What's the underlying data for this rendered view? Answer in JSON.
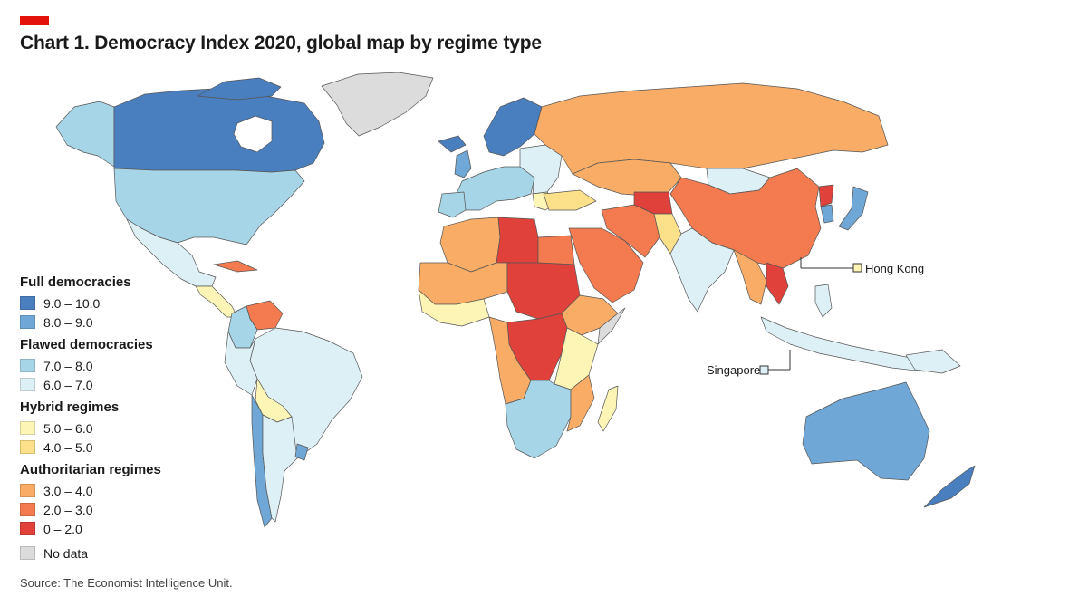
{
  "header": {
    "title": "Chart 1. Democracy Index 2020, global map by regime type",
    "accent_color": "#e3120b"
  },
  "legend": {
    "groups": [
      {
        "title": "Full democracies",
        "items": [
          {
            "label": "9.0 – 10.0",
            "color": "#4a7fbf"
          },
          {
            "label": "8.0 – 9.0",
            "color": "#6fa8d6"
          }
        ]
      },
      {
        "title": "Flawed democracies",
        "items": [
          {
            "label": "7.0 – 8.0",
            "color": "#a6d5e8"
          },
          {
            "label": "6.0 – 7.0",
            "color": "#ddf0f6"
          }
        ]
      },
      {
        "title": "Hybrid regimes",
        "items": [
          {
            "label": "5.0 – 6.0",
            "color": "#fdf5b5"
          },
          {
            "label": "4.0 – 5.0",
            "color": "#fde08a"
          }
        ]
      },
      {
        "title": "Authoritarian regimes",
        "items": [
          {
            "label": "3.0 – 4.0",
            "color": "#f9ac66"
          },
          {
            "label": "2.0 – 3.0",
            "color": "#f47a4f"
          },
          {
            "label": "0 – 2.0",
            "color": "#e0413a"
          }
        ]
      }
    ],
    "no_data": {
      "label": "No data",
      "color": "#dcdcdc"
    }
  },
  "callouts": {
    "hong_kong": {
      "label": "Hong Kong",
      "color": "#fdf5b5"
    },
    "singapore": {
      "label": "Singapore",
      "color": "#ddf0f6"
    }
  },
  "source": "Source: The Economist Intelligence Unit."
}
